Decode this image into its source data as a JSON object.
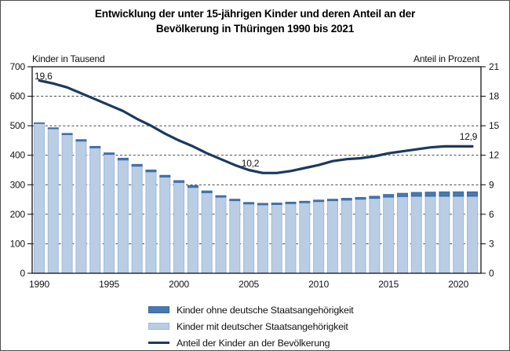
{
  "title": {
    "line1": "Entwicklung der unter 15-jährigen Kinder und deren Anteil an der",
    "line2": "Bevölkerung in Thüringen 1990 bis 2021"
  },
  "axes": {
    "left_caption": "Kinder in Tausend",
    "right_caption": "Anteil in Prozent",
    "left_ticks": [
      "0",
      "100",
      "200",
      "300",
      "400",
      "500",
      "600",
      "700"
    ],
    "right_ticks": [
      "0",
      "3",
      "6",
      "9",
      "12",
      "15",
      "18",
      "21"
    ],
    "x_ticks": [
      "1990",
      "1995",
      "2000",
      "2005",
      "2010",
      "2015",
      "2020"
    ]
  },
  "legend": {
    "items": [
      {
        "label": "Kinder ohne deutsche Staatsangehörigkeit",
        "swatch": "bar_dark"
      },
      {
        "label": "Kinder mit deutscher Staatsangehörigkeit",
        "swatch": "bar_light"
      },
      {
        "label": "Anteil der Kinder an der Bevölkerung",
        "swatch": "line"
      }
    ]
  },
  "annotations": [
    {
      "text": "19,6"
    },
    {
      "text": "10,2"
    },
    {
      "text": "12,9"
    }
  ],
  "colors": {
    "bar_light": "#b9cde4",
    "bar_light_border": "#a0bad9",
    "bar_dark": "#4679b2",
    "bar_dark_border": "#3a699f",
    "line": "#1c3a5e",
    "grid": "#2e2e2e"
  },
  "chart_data": {
    "type": "bar",
    "subtype": "stacked-bar-with-line",
    "title": "Entwicklung der unter 15-jährigen Kinder und deren Anteil an der Bevölkerung in Thüringen 1990 bis 2021",
    "categories": [
      1990,
      1991,
      1992,
      1993,
      1994,
      1995,
      1996,
      1997,
      1998,
      1999,
      2000,
      2001,
      2002,
      2003,
      2004,
      2005,
      2006,
      2007,
      2008,
      2009,
      2010,
      2011,
      2012,
      2013,
      2014,
      2015,
      2016,
      2017,
      2018,
      2019,
      2020,
      2021
    ],
    "series": [
      {
        "name": "Kinder ohne deutsche Staatsangehörigkeit",
        "axis": "left",
        "values": [
          2,
          3,
          4,
          5,
          5,
          5,
          6,
          6,
          6,
          6,
          6,
          6,
          6,
          5,
          5,
          5,
          5,
          5,
          5,
          5,
          5,
          5,
          6,
          6,
          7,
          9,
          11,
          13,
          14,
          15,
          15,
          15
        ]
      },
      {
        "name": "Kinder mit deutscher Staatsangehörigkeit",
        "axis": "left",
        "values": [
          508,
          490,
          470,
          448,
          425,
          403,
          384,
          363,
          344,
          326,
          308,
          291,
          273,
          258,
          246,
          235,
          232,
          233,
          236,
          239,
          243,
          246,
          248,
          251,
          254,
          258,
          260,
          261,
          261,
          261,
          261,
          261
        ]
      }
    ],
    "line_series": {
      "name": "Anteil der Kinder an der Bevölkerung",
      "axis": "right",
      "values": [
        19.6,
        19.3,
        18.9,
        18.3,
        17.7,
        17.1,
        16.5,
        15.7,
        15.0,
        14.2,
        13.5,
        12.9,
        12.2,
        11.6,
        11.0,
        10.5,
        10.2,
        10.2,
        10.4,
        10.7,
        11.0,
        11.4,
        11.6,
        11.7,
        11.9,
        12.2,
        12.4,
        12.6,
        12.8,
        12.9,
        12.9,
        12.9
      ]
    },
    "ylabel_left": "Kinder in Tausend",
    "ylabel_right": "Anteil in Prozent",
    "ylim_left": [
      0,
      700
    ],
    "ylim_right": [
      0,
      21
    ],
    "grid": "dashed horizontal",
    "legend_position": "bottom"
  }
}
